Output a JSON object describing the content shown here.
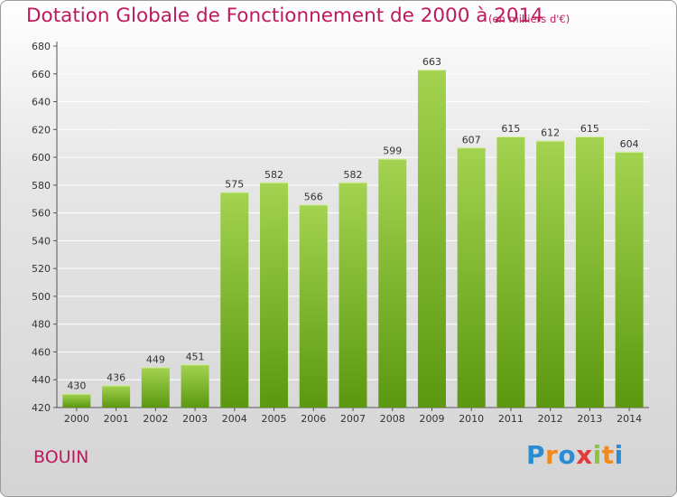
{
  "title": "Dotation Globale de Fonctionnement de 2000 à 2014",
  "subtitle": "(en milliers d'€)",
  "commune": "BOUIN",
  "logo": "Proxiti",
  "colors": {
    "title": "#c0185b",
    "bar_top": "#a3d350",
    "bar_bottom": "#5b980f",
    "grid": "#ffffff"
  },
  "chart_data": {
    "type": "bar",
    "title": "Dotation Globale de Fonctionnement de 2000 à 2014",
    "subtitle": "(en milliers d'€)",
    "xlabel": "",
    "ylabel": "",
    "categories": [
      "2000",
      "2001",
      "2002",
      "2003",
      "2004",
      "2005",
      "2006",
      "2007",
      "2008",
      "2009",
      "2010",
      "2011",
      "2012",
      "2013",
      "2014"
    ],
    "values": [
      430,
      436,
      449,
      451,
      575,
      582,
      566,
      582,
      599,
      663,
      607,
      615,
      612,
      615,
      604
    ],
    "ylim": [
      420,
      680
    ],
    "yticks": [
      420,
      440,
      460,
      480,
      500,
      520,
      540,
      560,
      580,
      600,
      620,
      640,
      660,
      680
    ],
    "grid": true,
    "legend": "none"
  }
}
